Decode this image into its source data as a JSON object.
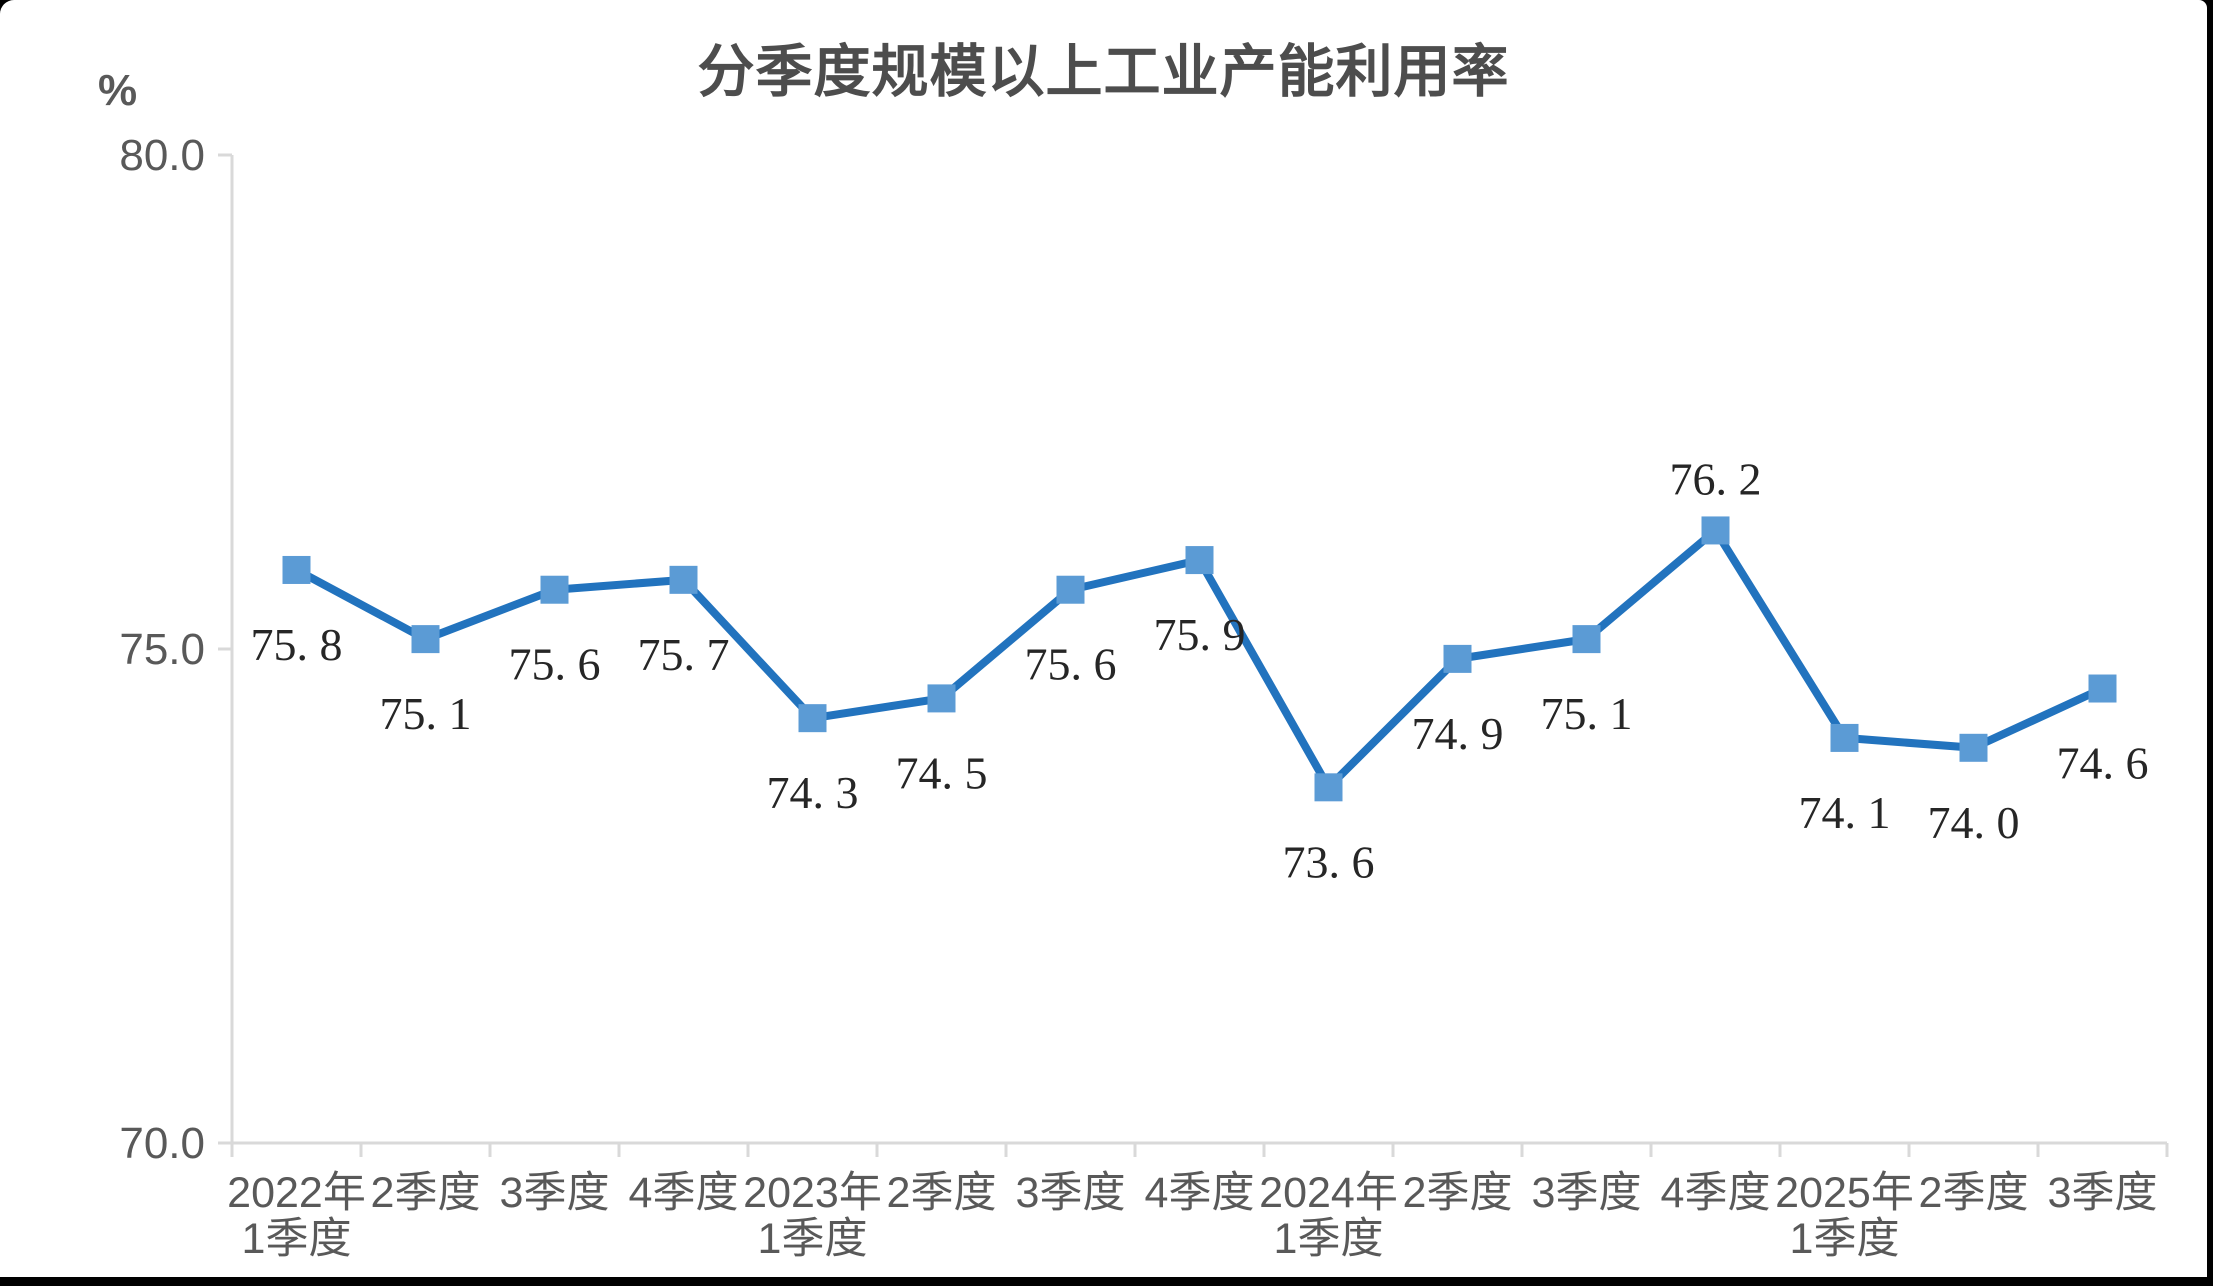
{
  "chart_data": {
    "type": "line",
    "title": "分季度规模以上工业产能利用率",
    "unit_label": "%",
    "categories": [
      "2022年\n1季度",
      "2季度",
      "3季度",
      "4季度",
      "2023年\n1季度",
      "2季度",
      "3季度",
      "4季度",
      "2024年\n1季度",
      "2季度",
      "3季度",
      "4季度",
      "2025年\n1季度",
      "2季度",
      "3季度"
    ],
    "values": [
      75.8,
      75.1,
      75.6,
      75.7,
      74.3,
      74.5,
      75.6,
      75.9,
      73.6,
      74.9,
      75.1,
      76.2,
      74.1,
      74.0,
      74.6
    ],
    "labels": [
      "75.8",
      "75.1",
      "75.6",
      "75.7",
      "74.3",
      "74.5",
      "75.6",
      "75.9",
      "73.6",
      "74.9",
      "75.1",
      "76.2",
      "74.1",
      "74.0",
      "74.6"
    ],
    "label_positions": [
      "below",
      "below",
      "below",
      "below",
      "below",
      "below",
      "below",
      "below",
      "below",
      "below",
      "below",
      "above",
      "below",
      "below",
      "below"
    ],
    "y_axis": {
      "min": 70.0,
      "max": 80.0,
      "ticks": [
        80.0,
        75.0,
        70.0
      ],
      "tick_labels": [
        "80.0",
        "75.0",
        "70.0"
      ]
    },
    "grid": false,
    "legend_position": "none",
    "colors": {
      "line": "#2273BE",
      "marker": "#5B9BD5",
      "axis": "#D9D9D9",
      "title_text": "#4d4d4d",
      "axis_text": "#595959",
      "data_label_text": "#262626"
    }
  }
}
